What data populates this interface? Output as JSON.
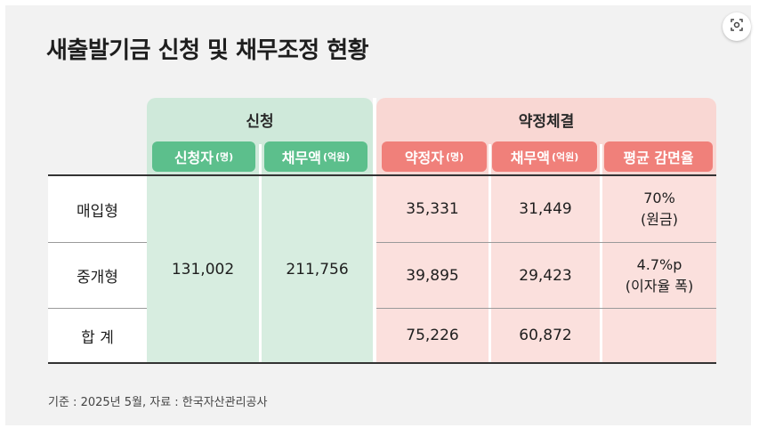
{
  "title": "새출발기금 신청 및 채무조정 현황",
  "groups": {
    "apply": "신청",
    "agreement": "약정체결"
  },
  "columns": {
    "applicants": "신청자",
    "applicants_unit": "(명)",
    "debt_applied": "채무액",
    "debt_applied_unit": "(억원)",
    "agreed": "약정자",
    "agreed_unit": "(명)",
    "debt_agreed": "채무액",
    "debt_agreed_unit": "(억원)",
    "reduction": "평균 감면율"
  },
  "rows": {
    "purchase": {
      "label": "매입형",
      "agreed": "35,331",
      "debt_agreed": "31,449",
      "reduction_value": "70%",
      "reduction_note": "(원금)"
    },
    "intermediary": {
      "label": "중개형",
      "agreed": "39,895",
      "debt_agreed": "29,423",
      "reduction_value": "4.7%p",
      "reduction_note": "(이자율 폭)"
    },
    "total": {
      "label": "합 계",
      "agreed": "75,226",
      "debt_agreed": "60,872"
    }
  },
  "merged": {
    "applicants": "131,002",
    "debt_applied": "211,756"
  },
  "footnote": "기준 : 2025년 5월, 자료 : 한국자산관리공사",
  "colors": {
    "green_header": "#cfe9da",
    "green_pill": "#5cbf8c",
    "green_body": "#d7ede0",
    "pink_header": "#f9d7d3",
    "pink_pill": "#f0807a",
    "pink_body": "#fbe0dd"
  }
}
